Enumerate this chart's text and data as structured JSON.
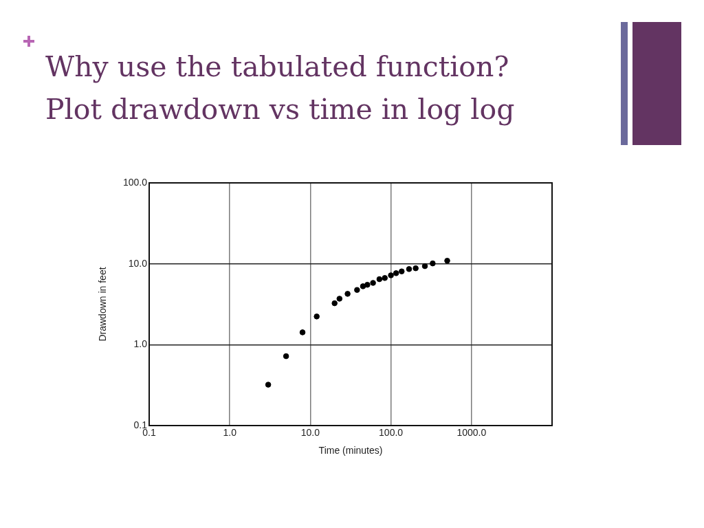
{
  "chart_data": {
    "type": "scatter",
    "title": "Why use the tabulated function?\nPlot drawdown vs time in log log",
    "xlabel": "Time (minutes)",
    "ylabel": "Drawdown in feet",
    "x": [
      3,
      5,
      8,
      12,
      20,
      23,
      29,
      38,
      45,
      51,
      60,
      72,
      84,
      100,
      116,
      136,
      168,
      203,
      264,
      330,
      500
    ],
    "values": [
      0.32,
      0.72,
      1.42,
      2.23,
      3.25,
      3.7,
      4.25,
      4.75,
      5.27,
      5.5,
      5.8,
      6.45,
      6.67,
      7.2,
      7.65,
      8.05,
      8.6,
      8.8,
      9.35,
      10.1,
      10.9
    ],
    "color": "#000000",
    "xlim": [
      0.1,
      10000
    ],
    "ylim": [
      0.1,
      100
    ],
    "xticks": [
      0.1,
      {
        "value": 1,
        "label": "1.0"
      },
      {
        "value": 10,
        "label": "10.0"
      },
      {
        "value": 100,
        "label": "100.0"
      },
      {
        "value": 1000,
        "label": "1000.0"
      }
    ],
    "yticks": [
      0.1,
      {
        "value": 1,
        "label": "1.0"
      },
      {
        "value": 10,
        "label": "10.0"
      },
      {
        "value": 100,
        "label": "100.0"
      }
    ],
    "log": "xy",
    "grid": true,
    "marker": "circle"
  }
}
